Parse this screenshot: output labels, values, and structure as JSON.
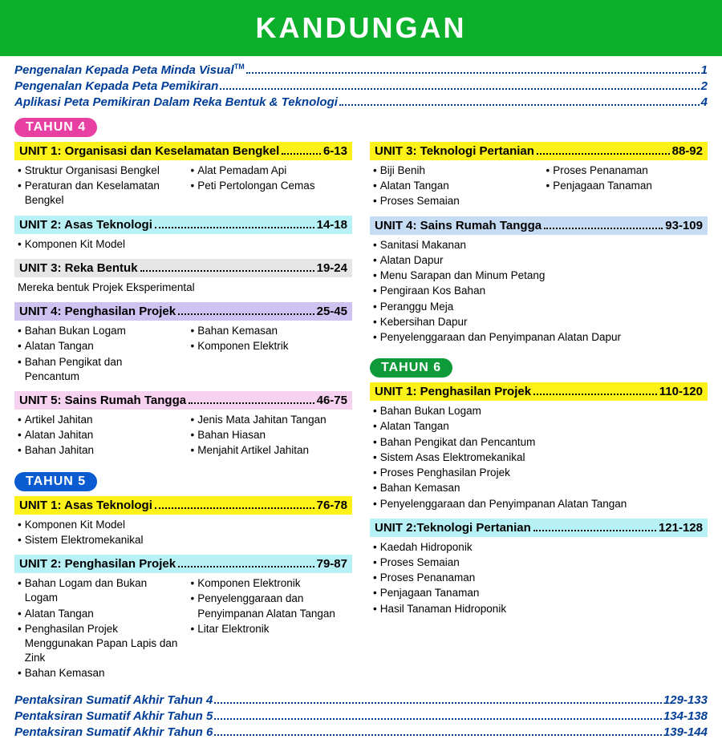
{
  "title": "KANDUNGAN",
  "intro": [
    {
      "label": "Pengenalan Kepada Peta Minda Visual",
      "sup": "TM",
      "page": "1"
    },
    {
      "label": "Pengenalan Kepada Peta Pemikiran",
      "sup": "",
      "page": "2"
    },
    {
      "label": "Aplikasi Peta Pemikiran Dalam Reka Bentuk & Teknologi",
      "sup": "",
      "page": "4"
    }
  ],
  "badges": {
    "t4": {
      "label": "TAHUN 4",
      "bg": "#e83fa3"
    },
    "t5": {
      "label": "TAHUN 5",
      "bg": "#0b5bd1"
    },
    "t6": {
      "label": "TAHUN 6",
      "bg": "#0f9a3a"
    }
  },
  "colors": {
    "yellow": "#fcf118",
    "cyan": "#b7f0f5",
    "grey": "#e6e6e6",
    "violet": "#cdc2f0",
    "pink": "#f7d1f0",
    "blue": "#c6dcf5"
  },
  "t4_left": [
    {
      "title": "UNIT 1: Organisasi dan Keselamatan Bengkel",
      "pages": "6-13",
      "color": "yellow",
      "subs": [
        [
          "Struktur Organisasi Bengkel",
          "Peraturan dan Keselamatan Bengkel"
        ],
        [
          "Alat Pemadam Api",
          "Peti Pertolongan Cemas"
        ]
      ]
    },
    {
      "title": "UNIT 2: Asas Teknologi",
      "pages": "14-18",
      "color": "cyan",
      "subs": [
        [
          "Komponen Kit Model"
        ]
      ]
    },
    {
      "title": "UNIT 3: Reka Bentuk",
      "pages": "19-24",
      "color": "grey",
      "subs": [
        [
          "Mereka bentuk Projek Eksperimental"
        ]
      ],
      "plain": true
    },
    {
      "title": "UNIT 4: Penghasilan Projek",
      "pages": "25-45",
      "color": "violet",
      "subs": [
        [
          "Bahan Bukan Logam",
          "Alatan Tangan",
          "Bahan Pengikat dan Pencantum"
        ],
        [
          "Bahan Kemasan",
          "Komponen Elektrik"
        ]
      ]
    },
    {
      "title": "UNIT 5: Sains Rumah Tangga",
      "pages": "46-75",
      "color": "pink",
      "subs": [
        [
          "Artikel Jahitan",
          "Alatan Jahitan",
          "Bahan Jahitan"
        ],
        [
          "Jenis Mata Jahitan Tangan",
          "Bahan Hiasan",
          "Menjahit Artikel Jahitan"
        ]
      ]
    }
  ],
  "t5_left": [
    {
      "title": "UNIT 1: Asas Teknologi",
      "pages": "76-78",
      "color": "yellow",
      "subs": [
        [
          "Komponen Kit Model",
          "Sistem Elektromekanikal"
        ]
      ]
    },
    {
      "title": "UNIT 2: Penghasilan Projek",
      "pages": "79-87",
      "color": "cyan",
      "subs": [
        [
          "Bahan Logam dan Bukan Logam",
          "Alatan Tangan",
          "Penghasilan Projek Menggunakan Papan Lapis dan Zink",
          "Bahan Kemasan"
        ],
        [
          "Komponen Elektronik",
          "Penyelenggaraan dan Penyimpanan Alatan Tangan",
          "Litar Elektronik"
        ]
      ]
    }
  ],
  "t5_right": [
    {
      "title": "UNIT 3: Teknologi Pertanian",
      "pages": "88-92",
      "color": "yellow",
      "subs": [
        [
          "Biji Benih",
          "Alatan Tangan",
          "Proses Semaian"
        ],
        [
          "Proses Penanaman",
          "Penjagaan Tanaman"
        ]
      ]
    },
    {
      "title": "UNIT 4: Sains Rumah Tangga",
      "pages": "93-109",
      "color": "blue",
      "subs": [
        [
          "Sanitasi Makanan",
          "Alatan Dapur",
          "Menu Sarapan dan Minum Petang",
          "Pengiraan Kos Bahan",
          "Peranggu Meja",
          "Kebersihan Dapur",
          "Penyelenggaraan dan Penyimpanan Alatan Dapur"
        ]
      ]
    }
  ],
  "t6_right": [
    {
      "title": "UNIT 1: Penghasilan Projek",
      "pages": "110-120",
      "color": "yellow",
      "subs": [
        [
          "Bahan Bukan Logam",
          "Alatan Tangan",
          "Bahan Pengikat dan Pencantum",
          "Sistem Asas Elektromekanikal",
          "Proses Penghasilan Projek",
          "Bahan Kemasan",
          "Penyelenggaraan dan Penyimpanan Alatan Tangan"
        ]
      ]
    },
    {
      "title": "UNIT 2:Teknologi Pertanian",
      "pages": "121-128",
      "color": "cyan",
      "subs": [
        [
          "Kaedah Hidroponik",
          "Proses Semaian",
          "Proses Penanaman",
          "Penjagaan Tanaman",
          "Hasil Tanaman Hidroponik"
        ]
      ]
    }
  ],
  "footer": [
    {
      "label": "Pentaksiran Sumatif Akhir Tahun 4",
      "page": "129-133"
    },
    {
      "label": "Pentaksiran Sumatif Akhir Tahun 5",
      "page": "134-138"
    },
    {
      "label": "Pentaksiran Sumatif Akhir Tahun 6",
      "page": "139-144"
    }
  ]
}
